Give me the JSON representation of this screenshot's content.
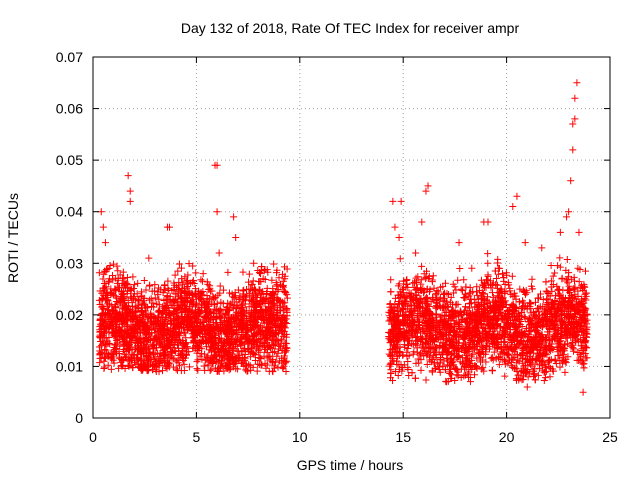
{
  "chart_data": {
    "type": "scatter",
    "title": "Day 132 of 2018, Rate Of TEC Index for receiver ampr",
    "xlabel": "GPS time / hours",
    "ylabel": "ROTI / TECUs",
    "xlim": [
      0,
      25
    ],
    "ylim": [
      0,
      0.07
    ],
    "xticks": [
      0,
      5,
      10,
      15,
      20,
      25
    ],
    "yticks": [
      0,
      0.01,
      0.02,
      0.03,
      0.04,
      0.05,
      0.06,
      0.07
    ],
    "xtick_labels": [
      "0",
      "5",
      "10",
      "15",
      "20",
      "25"
    ],
    "ytick_labels": [
      "0",
      "0.01",
      "0.02",
      "0.03",
      "0.04",
      "0.05",
      "0.06",
      "0.07"
    ],
    "grid": true,
    "marker": "plus",
    "color": "#ff0000",
    "clusters": [
      {
        "x_range": [
          0.3,
          9.4
        ],
        "y_typical": [
          0.009,
          0.03
        ]
      },
      {
        "x_range": [
          14.3,
          23.9
        ],
        "y_typical": [
          0.007,
          0.035
        ]
      }
    ],
    "series": [
      {
        "x": [
          0.4,
          0.5,
          0.6,
          0.8,
          1.0,
          1.7,
          1.8,
          1.8,
          2.5,
          2.7,
          3.6,
          3.7,
          4.6,
          5.9,
          6.0,
          6.0,
          6.1,
          6.8,
          6.9,
          7.3,
          8.1,
          8.5,
          8.7,
          9.1,
          14.5,
          14.6,
          14.8,
          14.9,
          15.6,
          15.9,
          16.1,
          16.2,
          17.1,
          17.7,
          18.3,
          18.9,
          19.1,
          19.8,
          20.3,
          20.5,
          20.9,
          21.0,
          21.7,
          22.1,
          22.6,
          22.9,
          23.0,
          23.1,
          23.2,
          23.2,
          23.3,
          23.3,
          23.4,
          23.5,
          23.7
        ],
        "y": [
          0.04,
          0.037,
          0.034,
          0.027,
          0.013,
          0.047,
          0.044,
          0.042,
          0.01,
          0.031,
          0.037,
          0.037,
          0.026,
          0.049,
          0.049,
          0.04,
          0.032,
          0.039,
          0.035,
          0.01,
          0.028,
          0.012,
          0.009,
          0.017,
          0.042,
          0.037,
          0.035,
          0.042,
          0.032,
          0.038,
          0.044,
          0.045,
          0.007,
          0.034,
          0.012,
          0.038,
          0.038,
          0.028,
          0.041,
          0.043,
          0.034,
          0.006,
          0.033,
          0.008,
          0.036,
          0.039,
          0.04,
          0.046,
          0.052,
          0.057,
          0.058,
          0.062,
          0.065,
          0.036,
          0.005
        ]
      }
    ]
  }
}
